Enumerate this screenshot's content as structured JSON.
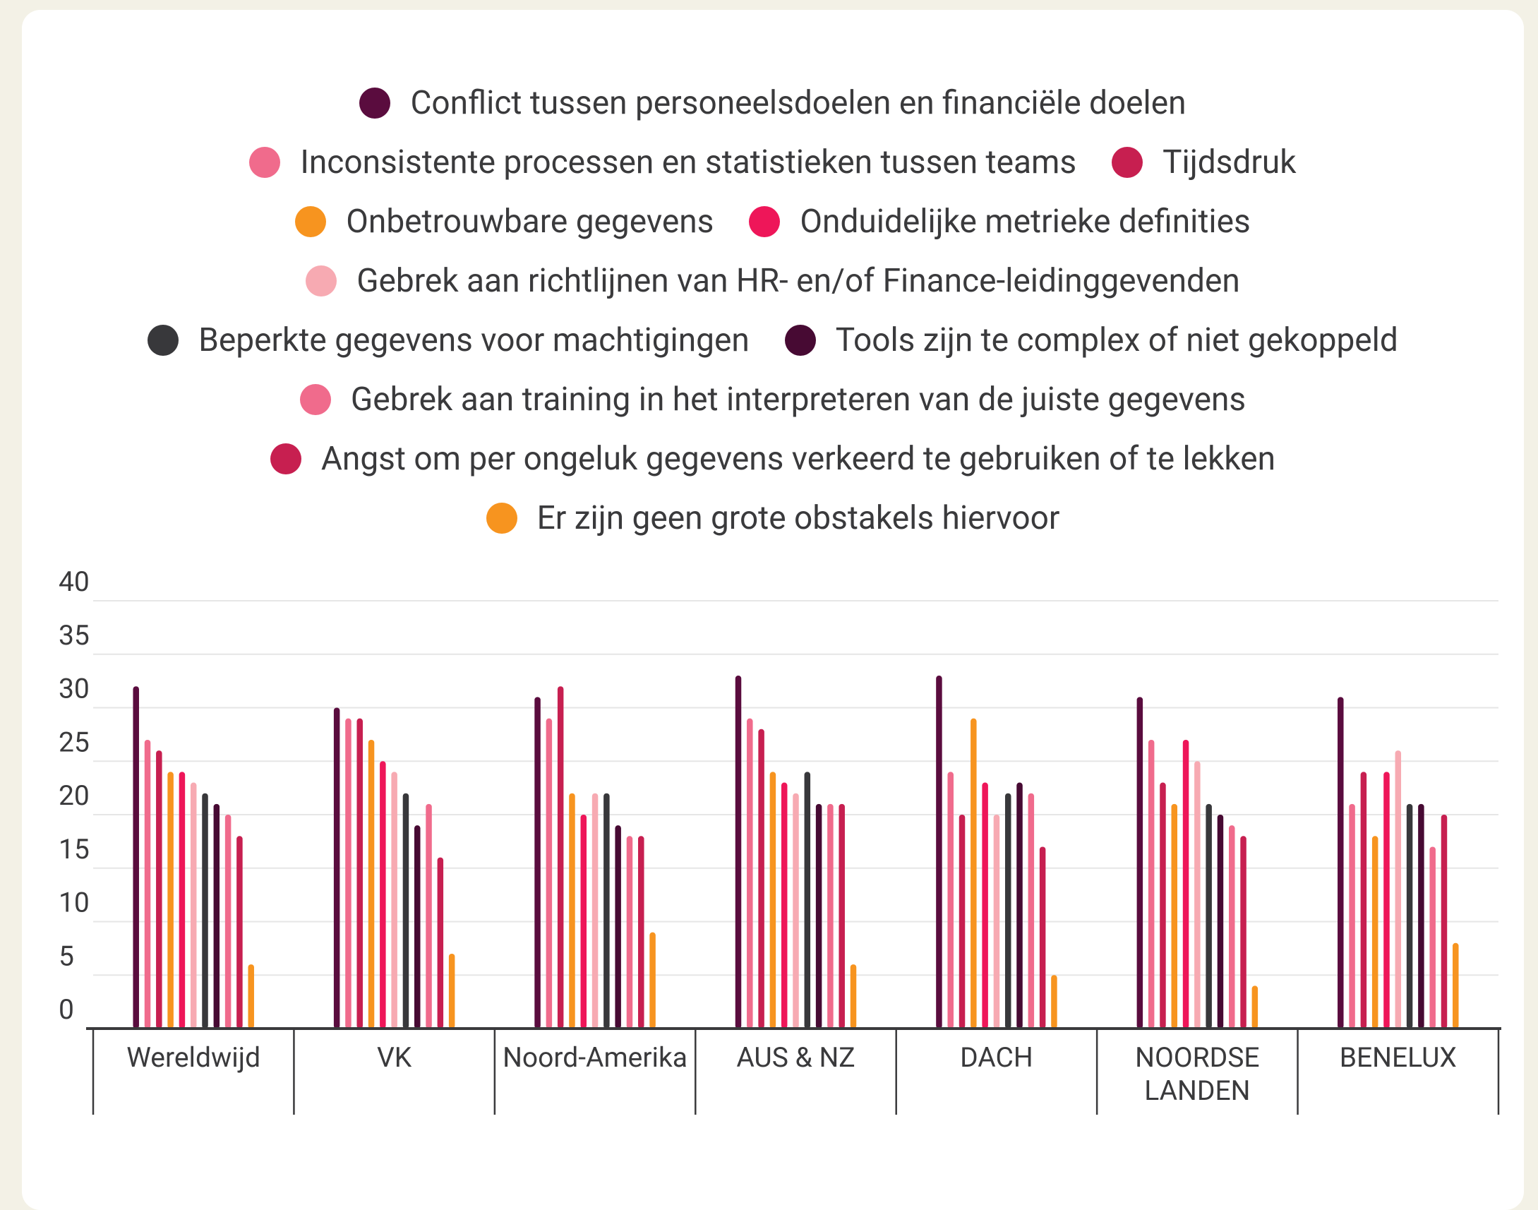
{
  "chart_data": {
    "type": "bar",
    "categories": [
      "Wereldwijd",
      "VK",
      "Noord-Amerika",
      "AUS & NZ",
      "DACH",
      "NOORDSE LANDEN",
      "BENELUX"
    ],
    "ylim": [
      0,
      40
    ],
    "yticks": [
      0,
      5,
      10,
      15,
      20,
      25,
      30,
      35,
      40
    ],
    "grid": true,
    "series": [
      {
        "name": "Conflict tussen personeelsdoelen en financiële doelen",
        "color": "#5a0c3e",
        "values": [
          32,
          30,
          31,
          33,
          33,
          31,
          31
        ]
      },
      {
        "name": "Inconsistente processen en statistieken tussen teams",
        "color": "#f06b8c",
        "values": [
          27,
          29,
          29,
          29,
          24,
          27,
          21
        ]
      },
      {
        "name": "Tijdsdruk",
        "color": "#c71f50",
        "values": [
          26,
          29,
          32,
          28,
          20,
          23,
          24
        ]
      },
      {
        "name": "Onbetrouwbare gegevens",
        "color": "#f7941f",
        "values": [
          24,
          27,
          22,
          24,
          29,
          21,
          18
        ]
      },
      {
        "name": "Onduidelijke metrieke definities",
        "color": "#ee1659",
        "values": [
          24,
          25,
          20,
          23,
          23,
          27,
          24
        ]
      },
      {
        "name": "Gebrek aan richtlijnen van HR- en/of Finance-leidinggevenden",
        "color": "#f7aab2",
        "values": [
          23,
          24,
          22,
          22,
          20,
          25,
          26
        ]
      },
      {
        "name": "Beperkte gegevens voor machtigingen",
        "color": "#38383b",
        "values": [
          22,
          22,
          22,
          24,
          22,
          21,
          21
        ]
      },
      {
        "name": "Tools zijn te complex of niet gekoppeld",
        "color": "#470a33",
        "values": [
          21,
          19,
          19,
          21,
          23,
          20,
          21
        ]
      },
      {
        "name": "Gebrek aan training in het interpreteren van de juiste gegevens",
        "color": "#f06b8c",
        "values": [
          20,
          21,
          18,
          21,
          22,
          19,
          17
        ]
      },
      {
        "name": "Angst om per ongeluk gegevens verkeerd te gebruiken of te lekken",
        "color": "#c71f50",
        "values": [
          18,
          16,
          18,
          21,
          17,
          18,
          20
        ]
      },
      {
        "name": "Er zijn geen grote obstakels hiervoor",
        "color": "#f7941f",
        "values": [
          6,
          7,
          9,
          6,
          5,
          4,
          8
        ]
      }
    ]
  }
}
